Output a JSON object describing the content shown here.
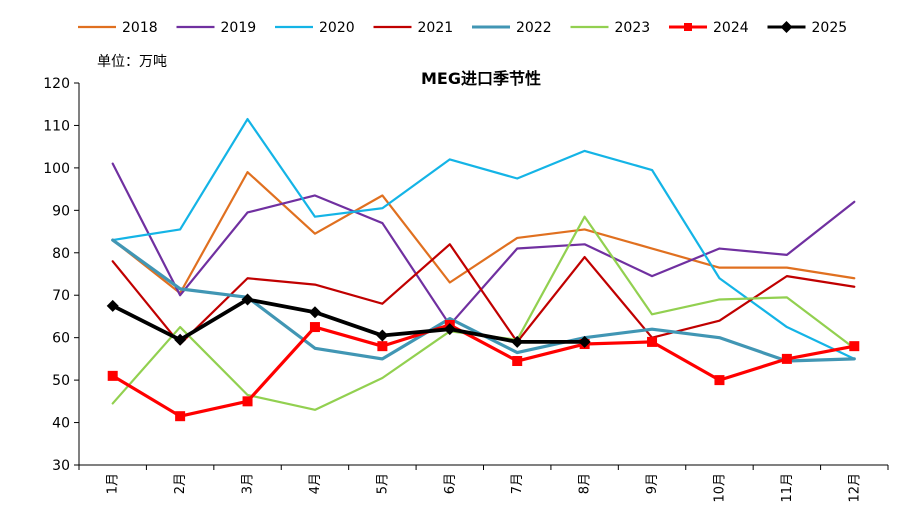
{
  "chart_data": {
    "type": "line",
    "title": "MEG进口季节性",
    "unit_label": "单位：万吨",
    "categories": [
      "1月",
      "2月",
      "3月",
      "4月",
      "5月",
      "6月",
      "7月",
      "8月",
      "9月",
      "10月",
      "11月",
      "12月"
    ],
    "ylim": [
      30,
      120
    ],
    "yticks": [
      30,
      40,
      50,
      60,
      70,
      80,
      90,
      100,
      110,
      120
    ],
    "grid": false,
    "legend_position": "top",
    "series": [
      {
        "name": "2018",
        "color": "#E07020",
        "width": 2.2,
        "marker": "none",
        "values": [
          83,
          70.5,
          99,
          84.5,
          93.5,
          73,
          83.5,
          85.5,
          81,
          76.5,
          76.5,
          74
        ]
      },
      {
        "name": "2019",
        "color": "#7030A0",
        "width": 2.2,
        "marker": "none",
        "values": [
          101,
          70,
          89.5,
          93.5,
          87,
          63,
          81,
          82,
          74.5,
          81,
          79.5,
          92
        ]
      },
      {
        "name": "2020",
        "color": "#14B4E6",
        "width": 2.2,
        "marker": "none",
        "values": [
          83,
          85.5,
          111.5,
          88.5,
          90.5,
          102,
          97.5,
          104,
          99.5,
          74,
          62.5,
          55
        ]
      },
      {
        "name": "2021",
        "color": "#C00000",
        "width": 2.2,
        "marker": "none",
        "values": [
          78,
          58.5,
          74,
          72.5,
          68,
          82,
          59,
          79,
          60,
          64,
          74.5,
          72
        ]
      },
      {
        "name": "2022",
        "color": "#4196B4",
        "width": 3.2,
        "marker": "none",
        "values": [
          83,
          71.5,
          69.5,
          57.5,
          55,
          64.5,
          56.5,
          60,
          62,
          60,
          54.5,
          55
        ]
      },
      {
        "name": "2023",
        "color": "#92D050",
        "width": 2.2,
        "marker": "none",
        "values": [
          44.5,
          62.5,
          46.5,
          43,
          50.5,
          61.5,
          59.5,
          88.5,
          65.5,
          69,
          69.5,
          57.5
        ]
      },
      {
        "name": "2024",
        "color": "#FF0000",
        "width": 3.2,
        "marker": "square",
        "values": [
          51,
          41.5,
          45,
          62.5,
          58,
          63,
          54.5,
          58.5,
          59,
          50,
          55,
          58
        ]
      },
      {
        "name": "2025",
        "color": "#000000",
        "width": 3.8,
        "marker": "diamond",
        "values": [
          67.5,
          59.5,
          69,
          66,
          60.5,
          62,
          59,
          59,
          null,
          null,
          null,
          null
        ]
      }
    ]
  }
}
